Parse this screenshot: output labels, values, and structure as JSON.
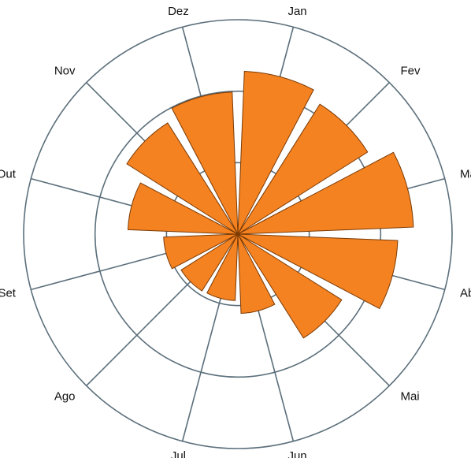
{
  "chart_data": {
    "type": "polar-bar",
    "categories": [
      "Jan",
      "Fev",
      "Mar",
      "Abr",
      "Mai",
      "Jun",
      "Jul",
      "Ago",
      "Set",
      "Out",
      "Nov",
      "Dez"
    ],
    "values": [
      228,
      215,
      246,
      224,
      172,
      111,
      93,
      94,
      104,
      154,
      184,
      199
    ],
    "color": "#f58220",
    "ylim": [
      0,
      300
    ],
    "yticks": [
      100,
      200,
      300
    ],
    "grid": true
  }
}
